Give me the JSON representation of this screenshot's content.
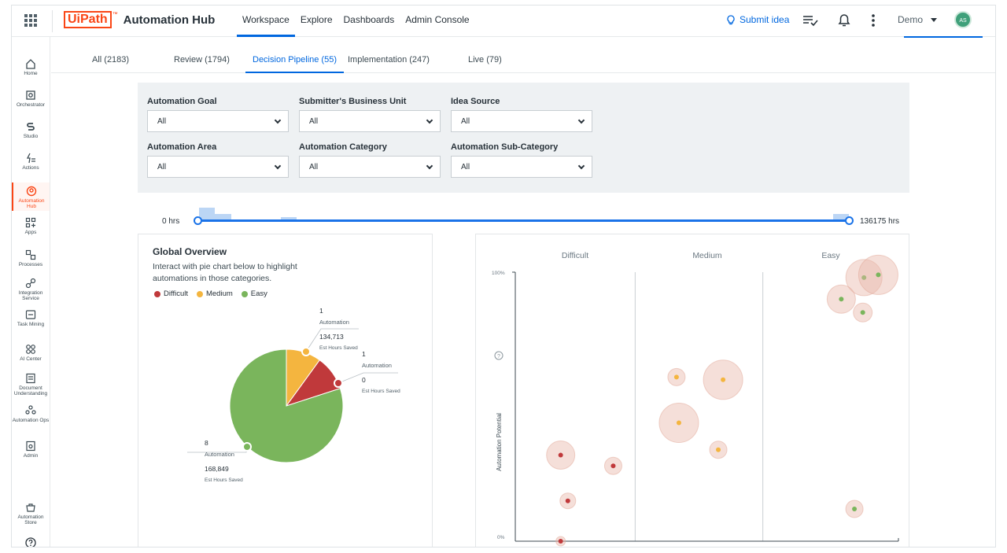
{
  "brand": {
    "logo_ui": "Ui",
    "logo_path": "Path",
    "logo_tm": "™",
    "product": "Automation Hub"
  },
  "topnav": [
    {
      "label": "Workspace",
      "active": true
    },
    {
      "label": "Explore",
      "active": false
    },
    {
      "label": "Dashboards",
      "active": false
    },
    {
      "label": "Admin Console",
      "active": false
    }
  ],
  "header": {
    "submit_label": "Submit idea",
    "user_label": "Demo",
    "avatar_initials": "AS"
  },
  "sidebar": [
    {
      "label": "Home",
      "icon": "home-icon"
    },
    {
      "label": "Orchestrator",
      "icon": "orchestrator-icon"
    },
    {
      "label": "Studio",
      "icon": "studio-icon"
    },
    {
      "label": "Actions",
      "icon": "actions-icon"
    },
    {
      "label": "Automation Hub",
      "icon": "automation-hub-icon",
      "active": true
    },
    {
      "label": "Apps",
      "icon": "apps-icon"
    },
    {
      "label": "Processes",
      "icon": "processes-icon"
    },
    {
      "label": "Integration Service",
      "icon": "integration-service-icon"
    },
    {
      "label": "Task Mining",
      "icon": "task-mining-icon"
    },
    {
      "label": "AI Center",
      "icon": "ai-center-icon"
    },
    {
      "label": "Document Understanding",
      "icon": "document-understanding-icon"
    },
    {
      "label": "Automation Ops",
      "icon": "automation-ops-icon"
    },
    {
      "label": "Admin",
      "icon": "admin-icon"
    },
    {
      "label": "Automation Store",
      "icon": "automation-store-icon"
    }
  ],
  "tabs": [
    {
      "label": "All (2183)",
      "active": false
    },
    {
      "label": "Review (1794)",
      "active": false
    },
    {
      "label": "Decision Pipeline (55)",
      "active": true
    },
    {
      "label": "Implementation (247)",
      "active": false
    },
    {
      "label": "Live (79)",
      "active": false
    }
  ],
  "filters": [
    {
      "label": "Automation Goal",
      "value": "All"
    },
    {
      "label": "Submitter's Business Unit",
      "value": "All"
    },
    {
      "label": "Idea Source",
      "value": "All"
    },
    {
      "label": "Automation Area",
      "value": "All"
    },
    {
      "label": "Automation Category",
      "value": "All"
    },
    {
      "label": "Automation Sub-Category",
      "value": "All"
    }
  ],
  "slider": {
    "min_label": "0 hrs",
    "max_label": "136175 hrs",
    "low_fraction": 0.0,
    "high_fraction": 1.0
  },
  "colors": {
    "difficult": "#c0393b",
    "medium": "#f4b53f",
    "easy": "#7ab55c",
    "accent": "#0067df",
    "brand": "#fa4616"
  },
  "overview": {
    "title": "Global Overview",
    "description": "Interact with pie chart below to highlight automations in those categories.",
    "legend": [
      "Difficult",
      "Medium",
      "Easy"
    ]
  },
  "chart_data": [
    {
      "type": "pie",
      "categories": [
        "Easy",
        "Medium",
        "Difficult"
      ],
      "values": [
        8,
        1,
        1
      ],
      "labels": [
        {
          "category": "Easy",
          "count": "8",
          "unit": "Automation",
          "hours": "168,849",
          "hours_label": "Est Hours Saved"
        },
        {
          "category": "Medium",
          "count": "1",
          "unit": "Automation",
          "hours": "134,713",
          "hours_label": "Est Hours Saved"
        },
        {
          "category": "Difficult",
          "count": "1",
          "unit": "Automation",
          "hours": "0",
          "hours_label": "Est Hours Saved"
        }
      ]
    },
    {
      "type": "scatter",
      "columns": [
        "Difficult",
        "Medium",
        "Easy"
      ],
      "ylabel": "Automation Potential",
      "ytick_labels": [
        "100%",
        "0%"
      ],
      "ylim": [
        0,
        100
      ],
      "series": [
        {
          "category": "Difficult",
          "points": [
            {
              "x": 0.38,
              "y": 0.0,
              "r": 0.3
            },
            {
              "x": 0.38,
              "y": 32,
              "r": 0.9
            },
            {
              "x": 0.82,
              "y": 28,
              "r": 0.55
            },
            {
              "x": 0.44,
              "y": 15,
              "r": 0.5
            }
          ]
        },
        {
          "category": "Medium",
          "points": [
            {
              "x": 1.35,
              "y": 61,
              "r": 0.55
            },
            {
              "x": 1.74,
              "y": 60,
              "r": 1.25
            },
            {
              "x": 1.37,
              "y": 44,
              "r": 1.25
            },
            {
              "x": 1.7,
              "y": 34,
              "r": 0.55
            }
          ]
        },
        {
          "category": "Easy",
          "points": [
            {
              "x": 2.92,
              "y": 98,
              "r": 1.15
            },
            {
              "x": 3.04,
              "y": 99,
              "r": 1.25
            },
            {
              "x": 2.73,
              "y": 90,
              "r": 0.9
            },
            {
              "x": 2.91,
              "y": 85,
              "r": 0.6
            },
            {
              "x": 2.84,
              "y": 12,
              "r": 0.55
            }
          ]
        }
      ]
    }
  ]
}
